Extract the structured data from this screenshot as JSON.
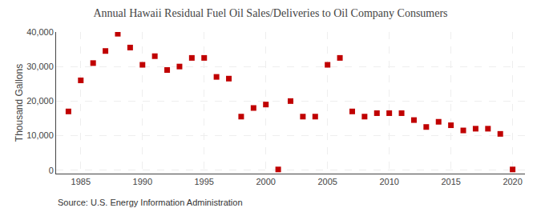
{
  "chart_data": {
    "type": "scatter",
    "title": "Annual Hawaii Residual Fuel Oil Sales/Deliveries to Oil Company Consumers",
    "ylabel": "Thousand Gallons",
    "annotations": [
      "Source: U.S. Energy Information Administration"
    ],
    "x": [
      1984,
      1985,
      1986,
      1987,
      1988,
      1989,
      1990,
      1991,
      1992,
      1993,
      1994,
      1995,
      1996,
      1997,
      1998,
      1999,
      2000,
      2001,
      2002,
      2003,
      2004,
      2005,
      2006,
      2007,
      2008,
      2009,
      2010,
      2011,
      2012,
      2013,
      2014,
      2015,
      2016,
      2017,
      2018,
      2019,
      2020
    ],
    "values": [
      17000,
      26000,
      31000,
      34500,
      39500,
      35500,
      30500,
      33000,
      29000,
      30000,
      32500,
      32500,
      27000,
      26500,
      15500,
      18000,
      19000,
      200,
      20000,
      15500,
      15500,
      30500,
      32500,
      17000,
      15500,
      16500,
      16500,
      16500,
      14500,
      12500,
      14000,
      13000,
      11500,
      12000,
      12000,
      10500,
      200
    ],
    "color": "#c00000",
    "marker": "square",
    "xlim": [
      1983,
      2021
    ],
    "xticks": [
      1985,
      1990,
      1995,
      2000,
      2005,
      2010,
      2015,
      2020
    ],
    "ylim": [
      -1000,
      40000
    ],
    "yticks": [
      0,
      {
        "value": 10000,
        "label": "10,000"
      },
      {
        "value": 20000,
        "label": "20,000"
      },
      {
        "value": 30000,
        "label": "30,000"
      },
      {
        "value": 40000,
        "label": "40,000"
      }
    ],
    "grid": true
  }
}
